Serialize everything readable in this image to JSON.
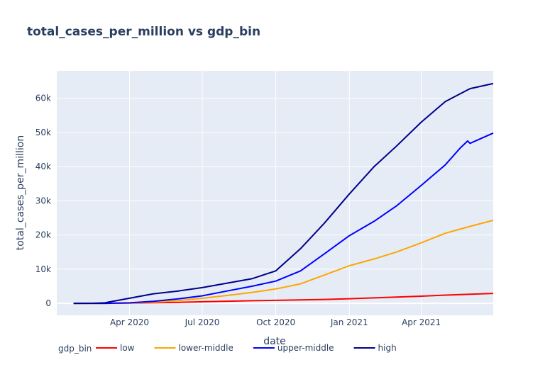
{
  "chart_data": {
    "type": "line",
    "title": "total_cases_per_million vs gdp_bin",
    "xlabel": "date",
    "ylabel": "total_cases_per_million",
    "x_range": [
      "2020-01-01",
      "2021-06-30"
    ],
    "ylim": [
      -3500,
      68000
    ],
    "x_ticks": [
      {
        "date": "2020-04-01",
        "label": "Apr 2020"
      },
      {
        "date": "2020-07-01",
        "label": "Jul 2020"
      },
      {
        "date": "2020-10-01",
        "label": "Oct 2020"
      },
      {
        "date": "2021-01-01",
        "label": "Jan 2021"
      },
      {
        "date": "2021-04-01",
        "label": "Apr 2021"
      }
    ],
    "y_ticks": [
      {
        "value": 0,
        "label": "0"
      },
      {
        "value": 10000,
        "label": "10k"
      },
      {
        "value": 20000,
        "label": "20k"
      },
      {
        "value": 30000,
        "label": "30k"
      },
      {
        "value": 40000,
        "label": "40k"
      },
      {
        "value": 50000,
        "label": "50k"
      },
      {
        "value": 60000,
        "label": "60k"
      }
    ],
    "grid": true,
    "legend": {
      "title": "gdp_bin",
      "position": "bottom-left",
      "orientation": "horizontal"
    },
    "series": [
      {
        "name": "low",
        "color": "#ff0000",
        "points": [
          [
            "2020-01-22",
            0
          ],
          [
            "2020-03-01",
            5
          ],
          [
            "2020-04-01",
            60
          ],
          [
            "2020-05-01",
            180
          ],
          [
            "2020-06-01",
            300
          ],
          [
            "2020-07-01",
            450
          ],
          [
            "2020-08-01",
            620
          ],
          [
            "2020-09-01",
            760
          ],
          [
            "2020-10-01",
            880
          ],
          [
            "2020-11-01",
            1000
          ],
          [
            "2020-12-01",
            1150
          ],
          [
            "2021-01-01",
            1350
          ],
          [
            "2021-02-01",
            1600
          ],
          [
            "2021-03-01",
            1850
          ],
          [
            "2021-04-01",
            2100
          ],
          [
            "2021-05-01",
            2400
          ],
          [
            "2021-06-01",
            2650
          ],
          [
            "2021-06-30",
            2900
          ]
        ]
      },
      {
        "name": "lower-middle",
        "color": "#ffa500",
        "points": [
          [
            "2020-01-22",
            0
          ],
          [
            "2020-03-01",
            5
          ],
          [
            "2020-04-01",
            100
          ],
          [
            "2020-05-01",
            350
          ],
          [
            "2020-06-01",
            800
          ],
          [
            "2020-07-01",
            1500
          ],
          [
            "2020-08-01",
            2300
          ],
          [
            "2020-09-01",
            3200
          ],
          [
            "2020-10-01",
            4200
          ],
          [
            "2020-11-01",
            5700
          ],
          [
            "2020-12-01",
            8300
          ],
          [
            "2021-01-01",
            11000
          ],
          [
            "2021-02-01",
            13000
          ],
          [
            "2021-03-01",
            15000
          ],
          [
            "2021-04-01",
            17700
          ],
          [
            "2021-05-01",
            20500
          ],
          [
            "2021-06-01",
            22500
          ],
          [
            "2021-06-30",
            24300
          ]
        ]
      },
      {
        "name": "upper-middle",
        "color": "#0000ff",
        "points": [
          [
            "2020-01-22",
            0
          ],
          [
            "2020-03-01",
            10
          ],
          [
            "2020-04-01",
            150
          ],
          [
            "2020-05-01",
            600
          ],
          [
            "2020-06-01",
            1300
          ],
          [
            "2020-07-01",
            2200
          ],
          [
            "2020-08-01",
            3600
          ],
          [
            "2020-09-01",
            5000
          ],
          [
            "2020-10-01",
            6500
          ],
          [
            "2020-11-01",
            9500
          ],
          [
            "2020-12-01",
            14500
          ],
          [
            "2021-01-01",
            19800
          ],
          [
            "2021-02-01",
            24000
          ],
          [
            "2021-03-01",
            28500
          ],
          [
            "2021-04-01",
            34500
          ],
          [
            "2021-05-01",
            40500
          ],
          [
            "2021-05-20",
            45500
          ],
          [
            "2021-05-29",
            47500
          ],
          [
            "2021-06-01",
            46800
          ],
          [
            "2021-06-30",
            49800
          ]
        ]
      },
      {
        "name": "high",
        "color": "#00008b",
        "points": [
          [
            "2020-01-22",
            0
          ],
          [
            "2020-02-15",
            30
          ],
          [
            "2020-03-01",
            150
          ],
          [
            "2020-04-01",
            1500
          ],
          [
            "2020-05-01",
            2800
          ],
          [
            "2020-06-01",
            3600
          ],
          [
            "2020-07-01",
            4600
          ],
          [
            "2020-08-01",
            5900
          ],
          [
            "2020-09-01",
            7200
          ],
          [
            "2020-10-01",
            9500
          ],
          [
            "2020-11-01",
            16000
          ],
          [
            "2020-12-01",
            23500
          ],
          [
            "2021-01-01",
            32000
          ],
          [
            "2021-02-01",
            40000
          ],
          [
            "2021-03-01",
            46000
          ],
          [
            "2021-04-01",
            53000
          ],
          [
            "2021-05-01",
            59000
          ],
          [
            "2021-06-01",
            62800
          ],
          [
            "2021-06-30",
            64300
          ]
        ]
      }
    ]
  }
}
